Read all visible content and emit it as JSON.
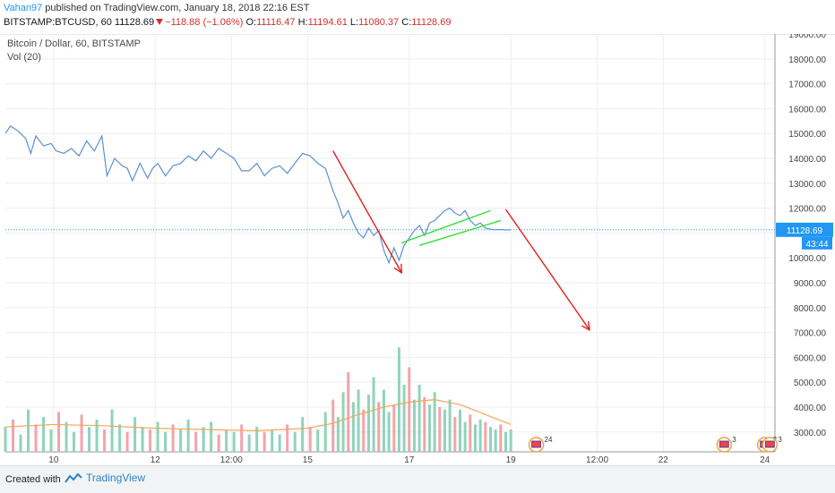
{
  "header": {
    "author": "Vahan97",
    "published_text": "published on TradingView.com, January 18, 2018 22:16 EST",
    "symbol": "BITSTAMP:BTCUSD, 60",
    "change": "11128.69",
    "change_delta": "−118.88 (−1.06%)",
    "open_label": "O:",
    "open": "11116.47",
    "high_label": "H:",
    "high": "11194.61",
    "low_label": "L:",
    "low": "11080.37",
    "close_label": "C:",
    "close": "11128.69"
  },
  "legend": {
    "series_title": "Bitcoin / Dollar, 60, BITSTAMP",
    "volume_title": "Vol (20)"
  },
  "price_tag": {
    "value": "11128.69",
    "countdown": "43:44",
    "color": "#2196f3"
  },
  "footer": {
    "created_with": "Created with",
    "brand": "TradingView"
  },
  "event_badges": [
    {
      "text": "24",
      "x_label": "19.5"
    },
    {
      "text": "3",
      "x_label": "23.2"
    },
    {
      "text": "2",
      "x_label": "24.0"
    },
    {
      "text": "3",
      "x_label": "24.1"
    }
  ],
  "chart_data": {
    "type": "line",
    "title": "Bitcoin / Dollar, 60, BITSTAMP",
    "x_tick_labels": [
      "10",
      "12",
      "12:00",
      "15",
      "17",
      "19",
      "12:00",
      "22",
      "24"
    ],
    "y_tick_labels": [
      "19000.00",
      "18000.00",
      "17000.00",
      "16000.00",
      "15000.00",
      "14000.00",
      "13000.00",
      "12000.00",
      "11000.00",
      "10000.00",
      "9000.00",
      "8000.00",
      "7000.00",
      "6000.00",
      "5000.00",
      "4000.00",
      "3000.00"
    ],
    "ylim": [
      2200,
      19000
    ],
    "x_range": [
      9.05,
      24.1
    ],
    "last_price_line": 11128.69,
    "grid": true,
    "colors": {
      "price": "#5b8fd1",
      "volume_ma": "#f5a55a",
      "vol_up": "#8fd4b9",
      "vol_down": "#f3a3ac",
      "bear_arrow": "#e02020",
      "bull_flag": "#33dd33",
      "last_line": "#2196f3"
    },
    "series": [
      {
        "name": "Bitcoin / Dollar",
        "x": [
          9.05,
          9.15,
          9.3,
          9.45,
          9.55,
          9.65,
          9.8,
          9.95,
          10.05,
          10.2,
          10.35,
          10.5,
          10.65,
          10.8,
          10.95,
          11.05,
          11.2,
          11.35,
          11.45,
          11.55,
          11.7,
          11.85,
          11.95,
          12.05,
          12.2,
          12.35,
          12.5,
          12.65,
          12.8,
          12.95,
          13.1,
          13.25,
          13.4,
          13.55,
          13.7,
          13.85,
          14.0,
          14.15,
          14.3,
          14.45,
          14.6,
          14.75,
          14.9,
          15.05,
          15.2,
          15.35,
          15.5,
          15.6,
          15.7,
          15.8,
          15.9,
          16.0,
          16.1,
          16.2,
          16.3,
          16.4,
          16.5,
          16.6,
          16.7,
          16.8,
          16.9,
          17.0,
          17.1,
          17.2,
          17.3,
          17.4,
          17.5,
          17.6,
          17.7,
          17.8,
          17.9,
          18.0,
          18.1,
          18.2,
          18.3,
          18.4,
          18.5,
          18.6,
          18.7,
          18.8,
          18.9,
          19.0
        ],
        "values": [
          15000,
          15300,
          15100,
          14800,
          14200,
          14900,
          14500,
          14600,
          14300,
          14200,
          14400,
          14100,
          14700,
          14300,
          14900,
          13300,
          14000,
          13700,
          13600,
          13100,
          13800,
          13200,
          13600,
          13800,
          13300,
          13700,
          13800,
          14100,
          13900,
          14300,
          14000,
          14400,
          14200,
          14000,
          13500,
          13500,
          13800,
          13300,
          13600,
          13700,
          13400,
          13800,
          14200,
          14100,
          13800,
          13600,
          12700,
          12200,
          11600,
          11900,
          11400,
          11000,
          10800,
          11200,
          10900,
          11100,
          10300,
          9800,
          10400,
          9900,
          10500,
          10800,
          11100,
          11300,
          10900,
          11400,
          11500,
          11700,
          11900,
          12000,
          11800,
          11700,
          11900,
          11500,
          11300,
          11400,
          11200,
          11150,
          11128,
          11140,
          11120,
          11128.69
        ]
      },
      {
        "name": "Vol (20)",
        "x": [
          9.05,
          9.2,
          9.35,
          9.5,
          9.65,
          9.8,
          9.95,
          10.1,
          10.25,
          10.4,
          10.55,
          10.7,
          10.85,
          11.0,
          11.15,
          11.3,
          11.45,
          11.6,
          11.75,
          11.9,
          12.05,
          12.2,
          12.35,
          12.5,
          12.65,
          12.8,
          12.95,
          13.1,
          13.25,
          13.4,
          13.55,
          13.7,
          13.85,
          14.0,
          14.15,
          14.3,
          14.45,
          14.6,
          14.75,
          14.9,
          15.05,
          15.2,
          15.35,
          15.5,
          15.6,
          15.7,
          15.8,
          15.9,
          16.0,
          16.1,
          16.2,
          16.3,
          16.4,
          16.5,
          16.6,
          16.7,
          16.8,
          16.9,
          17.0,
          17.1,
          17.2,
          17.3,
          17.4,
          17.5,
          17.6,
          17.7,
          17.8,
          17.9,
          18.0,
          18.1,
          18.2,
          18.3,
          18.4,
          18.5,
          18.6,
          18.7,
          18.8,
          18.9,
          19.0
        ],
        "values": [
          3200,
          3500,
          2900,
          3900,
          3300,
          3600,
          3100,
          3800,
          3400,
          3000,
          3700,
          3200,
          3500,
          3100,
          3900,
          3300,
          3000,
          3600,
          3200,
          3100,
          3400,
          3000,
          3300,
          3100,
          3500,
          3000,
          3200,
          3400,
          2900,
          3100,
          3000,
          3300,
          2900,
          3200,
          3000,
          3100,
          2900,
          3300,
          3000,
          3600,
          3200,
          3100,
          3800,
          4300,
          3600,
          4600,
          5400,
          4200,
          4700,
          3900,
          4500,
          5200,
          4200,
          4700,
          3800,
          4100,
          6400,
          4900,
          5600,
          4300,
          4900,
          4400,
          4100,
          4600,
          4000,
          3900,
          4300,
          3600,
          3900,
          3400,
          3700,
          3300,
          3500,
          3400,
          3200,
          3100,
          3300,
          3000,
          3100
        ]
      },
      {
        "name": "Volume MA",
        "x": [
          9.05,
          10.0,
          11.0,
          12.0,
          13.0,
          14.0,
          15.0,
          15.5,
          16.0,
          16.5,
          17.0,
          17.5,
          18.0,
          18.5,
          19.0
        ],
        "values": [
          3200,
          3300,
          3250,
          3150,
          3100,
          3050,
          3150,
          3350,
          3700,
          4000,
          4200,
          4300,
          4100,
          3700,
          3300
        ]
      }
    ],
    "annotations": [
      {
        "kind": "bear-arrow-1",
        "from": [
          15.5,
          14300
        ],
        "to": [
          16.85,
          9400
        ]
      },
      {
        "kind": "flag-top",
        "from": [
          16.85,
          10600
        ],
        "to": [
          18.6,
          11900
        ]
      },
      {
        "kind": "flag-bottom",
        "from": [
          17.2,
          10500
        ],
        "to": [
          18.8,
          11500
        ]
      },
      {
        "kind": "bear-arrow-2",
        "from": [
          18.9,
          11950
        ],
        "to": [
          20.55,
          7100
        ]
      }
    ]
  }
}
